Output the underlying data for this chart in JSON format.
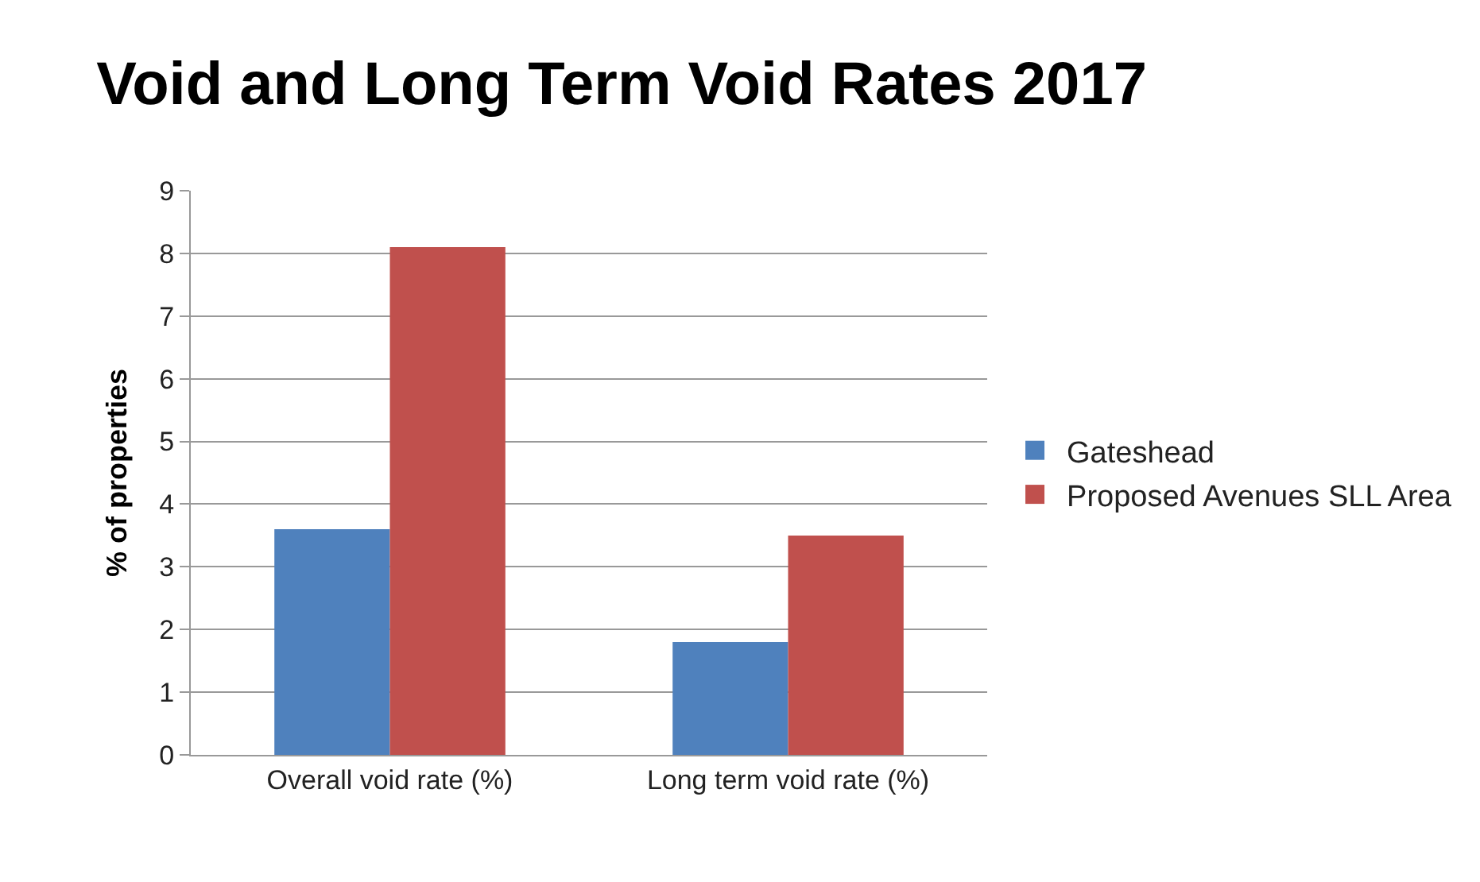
{
  "chart_data": {
    "type": "bar",
    "title": "Void and Long Term Void Rates 2017",
    "ylabel": "% of properties",
    "categories": [
      "Overall void rate (%)",
      "Long term void rate (%)"
    ],
    "series": [
      {
        "name": "Gateshead",
        "color": "#4f81bd",
        "values": [
          3.6,
          1.8
        ]
      },
      {
        "name": "Proposed Avenues SLL Area",
        "color": "#c0504d",
        "values": [
          8.1,
          3.5
        ]
      }
    ],
    "ylim": [
      0,
      9
    ],
    "yticks": [
      0,
      1,
      2,
      3,
      4,
      5,
      6,
      7,
      8,
      9
    ],
    "grid": "y",
    "legend": "right"
  }
}
